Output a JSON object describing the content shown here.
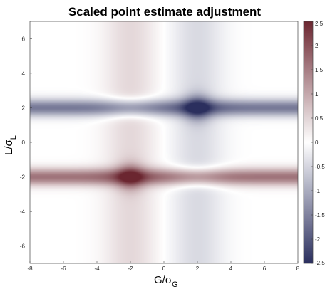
{
  "chart_data": {
    "type": "heatmap",
    "title": "Scaled point estimate adjustment",
    "xlabel": {
      "main": "G/σ",
      "sub": "G"
    },
    "ylabel": {
      "main": "L/σ",
      "sub": "L"
    },
    "xlim": [
      -8,
      8
    ],
    "ylim": [
      -7,
      7
    ],
    "x_ticks": [
      -8,
      -6,
      -4,
      -2,
      0,
      2,
      4,
      6,
      8
    ],
    "y_ticks": [
      -6,
      -4,
      -2,
      0,
      2,
      4,
      6
    ],
    "colorbar": {
      "range": [
        -2.5,
        2.5
      ],
      "ticks": [
        -2.5,
        -2,
        -1.5,
        -1,
        -0.5,
        0,
        0.5,
        1,
        1.5,
        2,
        2.5
      ],
      "colors": {
        "low": "#2b2f5e",
        "mid": "#ffffff",
        "high": "#6b2630"
      }
    },
    "features": [
      {
        "kind": "band",
        "orientation": "vertical",
        "center": -2,
        "width": 1.1,
        "value": 0.45
      },
      {
        "kind": "band",
        "orientation": "vertical",
        "center": 2,
        "width": 1.1,
        "value": -0.45
      },
      {
        "kind": "band",
        "orientation": "horizontal",
        "center": 2,
        "width": 0.35,
        "value": -1.6
      },
      {
        "kind": "band",
        "orientation": "horizontal",
        "center": -2,
        "width": 0.35,
        "value": 1.6
      },
      {
        "kind": "peak",
        "x": 2,
        "y": 2,
        "value": -2.5
      },
      {
        "kind": "peak",
        "x": -2,
        "y": -2,
        "value": 2.3
      }
    ]
  }
}
